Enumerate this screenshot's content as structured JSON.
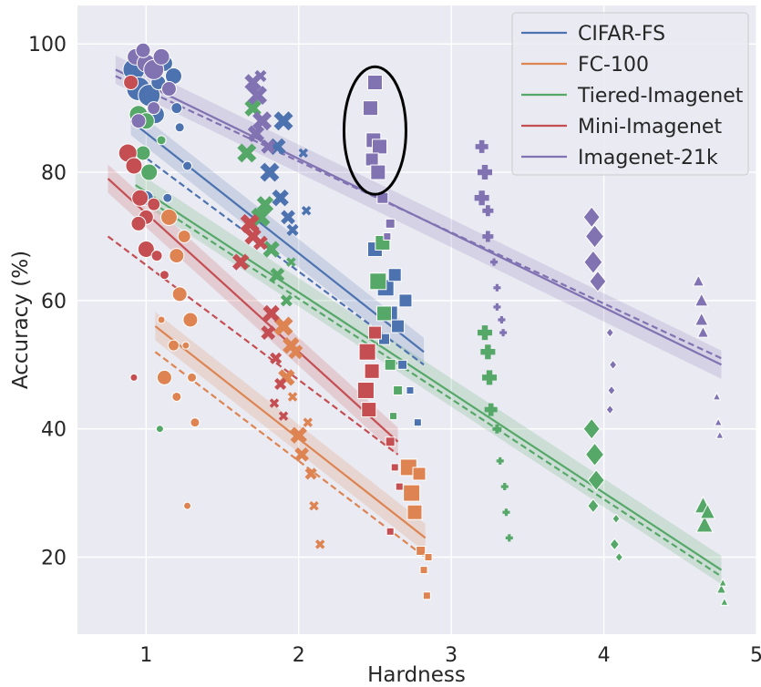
{
  "chart_data": {
    "type": "scatter",
    "title": "",
    "xlabel": "Hardness",
    "ylabel": "Accuracy (%)",
    "xlim": [
      0.55,
      5.0
    ],
    "ylim": [
      8,
      106
    ],
    "xticks": [
      "1",
      "2",
      "3",
      "4",
      "5"
    ],
    "xtick_values": [
      1,
      2,
      3,
      4,
      5
    ],
    "yticks": [
      "20",
      "40",
      "60",
      "80",
      "100"
    ],
    "ytick_values": [
      20,
      40,
      60,
      80,
      100
    ],
    "grid": true,
    "legend_position": "top-right",
    "annotation": "ellipse around Imagenet-21k square cluster near hardness 2.5",
    "series": [
      {
        "name": "CIFAR-FS",
        "color": "#4c72b0",
        "fit_solid": [
          [
            0.9,
            88
          ],
          [
            2.82,
            52
          ]
        ],
        "fit_dashed": [
          [
            0.9,
            84
          ],
          [
            2.82,
            50
          ]
        ],
        "points": [
          [
            0.92,
            96,
            "circle",
            12
          ],
          [
            0.95,
            93,
            "circle",
            13
          ],
          [
            1.02,
            92,
            "circle",
            12
          ],
          [
            1.06,
            89,
            "circle",
            10
          ],
          [
            1.12,
            97,
            "circle",
            9
          ],
          [
            1.18,
            95,
            "circle",
            9
          ],
          [
            1.08,
            94,
            "circle",
            8
          ],
          [
            1.2,
            90,
            "circle",
            6
          ],
          [
            1.22,
            87,
            "circle",
            5
          ],
          [
            1.14,
            76,
            "circle",
            5
          ],
          [
            1.0,
            76,
            "circle",
            8
          ],
          [
            1.27,
            81,
            "circle",
            5
          ],
          [
            1.81,
            80,
            "x",
            8
          ],
          [
            1.86,
            84,
            "x",
            7
          ],
          [
            1.9,
            88,
            "x",
            8
          ],
          [
            1.88,
            76,
            "x",
            7
          ],
          [
            1.93,
            73,
            "x",
            6
          ],
          [
            1.96,
            71,
            "x",
            5
          ],
          [
            2.03,
            83,
            "x",
            4
          ],
          [
            2.05,
            74,
            "x",
            4
          ],
          [
            2.5,
            68,
            "square",
            8
          ],
          [
            2.57,
            62,
            "square",
            9
          ],
          [
            2.6,
            58,
            "square",
            8
          ],
          [
            2.63,
            64,
            "square",
            7
          ],
          [
            2.65,
            56,
            "square",
            7
          ],
          [
            2.7,
            60,
            "square",
            7
          ],
          [
            2.56,
            54,
            "square",
            6
          ],
          [
            2.68,
            50,
            "square",
            5
          ],
          [
            2.73,
            46,
            "square",
            4
          ],
          [
            2.78,
            41,
            "square",
            4
          ]
        ]
      },
      {
        "name": "FC-100",
        "color": "#dd8452",
        "fit_solid": [
          [
            1.06,
            56
          ],
          [
            2.83,
            23
          ]
        ],
        "fit_dashed": [
          [
            1.06,
            52
          ],
          [
            2.83,
            20
          ]
        ],
        "points": [
          [
            1.15,
            73,
            "circle",
            9
          ],
          [
            1.2,
            67,
            "circle",
            8
          ],
          [
            1.22,
            61,
            "circle",
            8
          ],
          [
            1.25,
            70,
            "circle",
            7
          ],
          [
            1.29,
            57,
            "circle",
            8
          ],
          [
            1.12,
            48,
            "circle",
            8
          ],
          [
            1.18,
            53,
            "circle",
            6
          ],
          [
            1.2,
            45,
            "circle",
            5
          ],
          [
            1.3,
            48,
            "circle",
            5
          ],
          [
            1.32,
            41,
            "circle",
            5
          ],
          [
            1.26,
            53,
            "circle",
            4
          ],
          [
            1.27,
            28,
            "circle",
            4
          ],
          [
            1.1,
            57,
            "circle",
            4
          ],
          [
            1.9,
            56,
            "x",
            8
          ],
          [
            1.95,
            53,
            "x",
            7
          ],
          [
            1.92,
            48,
            "x",
            7
          ],
          [
            1.98,
            52,
            "x",
            6
          ],
          [
            2.0,
            39,
            "x",
            7
          ],
          [
            2.02,
            36,
            "x",
            6
          ],
          [
            2.08,
            33,
            "x",
            5
          ],
          [
            2.06,
            41,
            "x",
            4
          ],
          [
            2.1,
            28,
            "x",
            4
          ],
          [
            2.14,
            22,
            "x",
            4
          ],
          [
            1.96,
            45,
            "x",
            4
          ],
          [
            2.72,
            34,
            "square",
            9
          ],
          [
            2.74,
            30,
            "square",
            9
          ],
          [
            2.76,
            27,
            "square",
            8
          ],
          [
            2.79,
            33,
            "square",
            7
          ],
          [
            2.8,
            21,
            "square",
            5
          ],
          [
            2.82,
            18,
            "square",
            4
          ],
          [
            2.84,
            14,
            "square",
            4
          ],
          [
            2.85,
            20,
            "square",
            4
          ]
        ]
      },
      {
        "name": "Tiered-Imagenet",
        "color": "#55a868",
        "fit_solid": [
          [
            0.93,
            78
          ],
          [
            4.77,
            18
          ]
        ],
        "fit_dashed": [
          [
            0.93,
            77
          ],
          [
            4.77,
            17
          ]
        ],
        "points": [
          [
            0.95,
            89,
            "circle",
            10
          ],
          [
            1.0,
            88,
            "circle",
            9
          ],
          [
            1.02,
            80,
            "circle",
            9
          ],
          [
            0.98,
            83,
            "circle",
            8
          ],
          [
            1.1,
            85,
            "circle",
            5
          ],
          [
            1.09,
            40,
            "circle",
            4
          ],
          [
            1.66,
            83,
            "x",
            8
          ],
          [
            1.7,
            90,
            "x",
            7
          ],
          [
            1.75,
            73,
            "x",
            8
          ],
          [
            1.78,
            75,
            "x",
            7
          ],
          [
            1.82,
            68,
            "x",
            7
          ],
          [
            1.86,
            64,
            "x",
            6
          ],
          [
            1.92,
            60,
            "x",
            5
          ],
          [
            1.95,
            66,
            "x",
            4
          ],
          [
            2.55,
            69,
            "square",
            8
          ],
          [
            2.52,
            63,
            "square",
            9
          ],
          [
            2.56,
            58,
            "square",
            8
          ],
          [
            2.6,
            50,
            "square",
            6
          ],
          [
            2.65,
            46,
            "square",
            5
          ],
          [
            2.62,
            42,
            "square",
            4
          ],
          [
            3.22,
            55,
            "plus",
            8
          ],
          [
            3.24,
            52,
            "plus",
            8
          ],
          [
            3.25,
            48,
            "plus",
            8
          ],
          [
            3.26,
            43,
            "plus",
            7
          ],
          [
            3.3,
            40,
            "plus",
            5
          ],
          [
            3.32,
            35,
            "plus",
            4
          ],
          [
            3.35,
            31,
            "plus",
            4
          ],
          [
            3.36,
            27,
            "plus",
            4
          ],
          [
            3.38,
            23,
            "plus",
            4
          ],
          [
            3.92,
            40,
            "diamond",
            9
          ],
          [
            3.94,
            36,
            "diamond",
            10
          ],
          [
            3.95,
            32,
            "diamond",
            9
          ],
          [
            3.93,
            28,
            "diamond",
            6
          ],
          [
            4.07,
            22,
            "diamond",
            5
          ],
          [
            4.08,
            26,
            "diamond",
            4
          ],
          [
            4.1,
            20,
            "diamond",
            4
          ],
          [
            4.65,
            28,
            "triangle",
            9
          ],
          [
            4.66,
            25,
            "triangle",
            9
          ],
          [
            4.68,
            27,
            "triangle",
            8
          ],
          [
            4.77,
            15,
            "triangle",
            5
          ],
          [
            4.79,
            13,
            "triangle",
            4
          ],
          [
            4.78,
            16,
            "triangle",
            4
          ]
        ]
      },
      {
        "name": "Mini-Imagenet",
        "color": "#c44e52",
        "fit_solid": [
          [
            0.75,
            79
          ],
          [
            2.65,
            38
          ]
        ],
        "fit_dashed": [
          [
            0.75,
            70
          ],
          [
            2.65,
            36
          ]
        ],
        "points": [
          [
            0.88,
            83,
            "circle",
            10
          ],
          [
            0.92,
            81,
            "circle",
            9
          ],
          [
            0.96,
            76,
            "circle",
            9
          ],
          [
            1.0,
            73,
            "circle",
            8
          ],
          [
            1.0,
            68,
            "circle",
            9
          ],
          [
            0.95,
            72,
            "circle",
            8
          ],
          [
            1.05,
            75,
            "circle",
            7
          ],
          [
            1.07,
            67,
            "circle",
            6
          ],
          [
            1.12,
            64,
            "circle",
            5
          ],
          [
            0.92,
            48,
            "circle",
            4
          ],
          [
            0.9,
            94,
            "circle",
            8
          ],
          [
            1.68,
            72,
            "x",
            8
          ],
          [
            1.7,
            70,
            "x",
            7
          ],
          [
            1.62,
            66,
            "x",
            7
          ],
          [
            1.75,
            69,
            "x",
            6
          ],
          [
            1.82,
            58,
            "x",
            7
          ],
          [
            1.8,
            55,
            "x",
            6
          ],
          [
            1.85,
            51,
            "x",
            5
          ],
          [
            1.88,
            47,
            "x",
            5
          ],
          [
            1.84,
            44,
            "x",
            4
          ],
          [
            1.9,
            42,
            "x",
            4
          ],
          [
            2.45,
            52,
            "square",
            9
          ],
          [
            2.48,
            49,
            "square",
            8
          ],
          [
            2.44,
            46,
            "square",
            9
          ],
          [
            2.46,
            43,
            "square",
            8
          ],
          [
            2.5,
            55,
            "square",
            7
          ],
          [
            2.6,
            38,
            "square",
            5
          ],
          [
            2.63,
            34,
            "square",
            4
          ],
          [
            2.66,
            31,
            "square",
            4
          ],
          [
            2.6,
            24,
            "square",
            4
          ]
        ]
      },
      {
        "name": "Imagenet-21k",
        "color": "#8172b2",
        "fit_solid": [
          [
            0.8,
            96
          ],
          [
            4.77,
            50
          ]
        ],
        "fit_dashed": [
          [
            0.8,
            95
          ],
          [
            4.77,
            51
          ]
        ],
        "points": [
          [
            0.93,
            98,
            "circle",
            9
          ],
          [
            1.0,
            97,
            "circle",
            10
          ],
          [
            1.05,
            96,
            "circle",
            11
          ],
          [
            1.1,
            98,
            "circle",
            9
          ],
          [
            0.98,
            99,
            "circle",
            8
          ],
          [
            1.15,
            93,
            "circle",
            8
          ],
          [
            0.95,
            88,
            "circle",
            8
          ],
          [
            1.05,
            90,
            "circle",
            7
          ],
          [
            1.7,
            94,
            "x",
            7
          ],
          [
            1.73,
            92,
            "x",
            8
          ],
          [
            1.76,
            88,
            "x",
            8
          ],
          [
            1.72,
            86,
            "x",
            7
          ],
          [
            1.8,
            84,
            "x",
            6
          ],
          [
            1.75,
            95,
            "x",
            5
          ],
          [
            2.5,
            94,
            "square",
            8
          ],
          [
            2.47,
            90,
            "square",
            8
          ],
          [
            2.49,
            85,
            "square",
            8
          ],
          [
            2.53,
            84,
            "square",
            8
          ],
          [
            2.48,
            82,
            "square",
            7
          ],
          [
            2.52,
            80,
            "square",
            8
          ],
          [
            2.55,
            76,
            "square",
            6
          ],
          [
            2.6,
            72,
            "square",
            5
          ],
          [
            2.58,
            70,
            "square",
            4
          ],
          [
            3.2,
            84,
            "plus",
            7
          ],
          [
            3.22,
            80,
            "plus",
            8
          ],
          [
            3.2,
            76,
            "plus",
            8
          ],
          [
            3.24,
            74,
            "plus",
            6
          ],
          [
            3.24,
            70,
            "plus",
            6
          ],
          [
            3.28,
            66,
            "plus",
            4
          ],
          [
            3.3,
            62,
            "plus",
            4
          ],
          [
            3.3,
            59,
            "plus",
            4
          ],
          [
            3.34,
            55,
            "plus",
            4
          ],
          [
            3.33,
            57,
            "plus",
            4
          ],
          [
            3.92,
            73,
            "diamond",
            9
          ],
          [
            3.94,
            70,
            "diamond",
            10
          ],
          [
            3.93,
            66,
            "diamond",
            10
          ],
          [
            3.96,
            63,
            "diamond",
            9
          ],
          [
            4.04,
            55,
            "diamond",
            4
          ],
          [
            4.06,
            50,
            "diamond",
            4
          ],
          [
            4.05,
            46,
            "diamond",
            4
          ],
          [
            4.04,
            43,
            "diamond",
            4
          ],
          [
            4.62,
            63,
            "triangle",
            6
          ],
          [
            4.64,
            60,
            "triangle",
            7
          ],
          [
            4.64,
            57,
            "triangle",
            7
          ],
          [
            4.65,
            55,
            "triangle",
            6
          ],
          [
            4.74,
            45,
            "triangle",
            4
          ],
          [
            4.75,
            41,
            "triangle",
            4
          ],
          [
            4.76,
            39,
            "triangle",
            4
          ]
        ]
      }
    ]
  }
}
